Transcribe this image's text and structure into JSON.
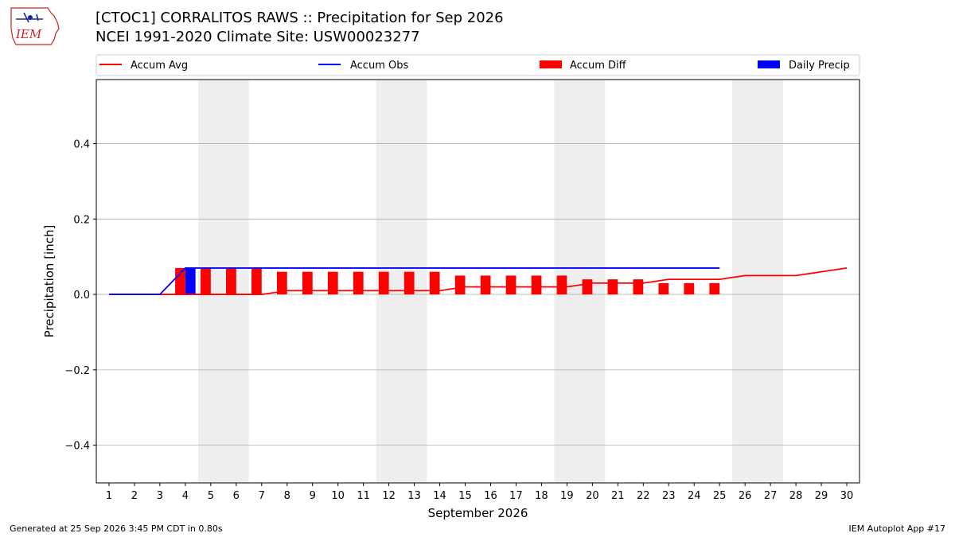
{
  "header": {
    "logo_text": "IEM",
    "title_line1": "[CTOC1] CORRALITOS RAWS :: Precipitation for Sep 2026",
    "title_line2": "NCEI 1991-2020 Climate Site: USW00023277"
  },
  "footer": {
    "left": "Generated at 25 Sep 2026 3:45 PM CDT in 0.80s",
    "right": "IEM Autoplot App #17"
  },
  "colors": {
    "avg": "#ff0000",
    "obs": "#0000ff",
    "diff": "#ff0000",
    "daily": "#0000ff",
    "weekend_band": "#eeeeee",
    "grid": "#b0b0b0"
  },
  "chart_data": {
    "type": "line",
    "title": "[CTOC1] CORRALITOS RAWS :: Precipitation for Sep 2026",
    "subtitle": "NCEI 1991-2020 Climate Site: USW00023277",
    "xlabel": "September 2026",
    "ylabel": "Precipitation [inch]",
    "ylim": [
      -0.5,
      0.57
    ],
    "xlim": [
      0.5,
      30.5
    ],
    "yticks": [
      -0.4,
      -0.2,
      0.0,
      0.2,
      0.4
    ],
    "ytick_labels": [
      "−0.4",
      "−0.2",
      "0.0",
      "0.2",
      "0.4"
    ],
    "xticks": [
      1,
      2,
      3,
      4,
      5,
      6,
      7,
      8,
      9,
      10,
      11,
      12,
      13,
      14,
      15,
      16,
      17,
      18,
      19,
      20,
      21,
      22,
      23,
      24,
      25,
      26,
      27,
      28,
      29,
      30
    ],
    "grid": "horizontal",
    "legend_placement": "top",
    "legend": [
      "Accum Avg",
      "Accum Obs",
      "Accum Diff",
      "Daily Precip"
    ],
    "shaded_days": [
      [
        5,
        6
      ],
      [
        12,
        13
      ],
      [
        19,
        20
      ],
      [
        26,
        27
      ]
    ],
    "series": [
      {
        "name": "Accum Avg",
        "kind": "line",
        "x": [
          1,
          2,
          3,
          4,
          5,
          6,
          7,
          8,
          9,
          10,
          11,
          12,
          13,
          14,
          15,
          16,
          17,
          18,
          19,
          20,
          21,
          22,
          23,
          24,
          25,
          26,
          27,
          28,
          29,
          30
        ],
        "values": [
          0.0,
          0.0,
          0.0,
          0.0,
          0.0,
          0.0,
          0.0,
          0.01,
          0.01,
          0.01,
          0.01,
          0.01,
          0.01,
          0.01,
          0.02,
          0.02,
          0.02,
          0.02,
          0.02,
          0.03,
          0.03,
          0.03,
          0.04,
          0.04,
          0.04,
          0.05,
          0.05,
          0.05,
          0.06,
          0.07
        ]
      },
      {
        "name": "Accum Obs",
        "kind": "line",
        "x": [
          1,
          2,
          3,
          4,
          5,
          6,
          7,
          8,
          9,
          10,
          11,
          12,
          13,
          14,
          15,
          16,
          17,
          18,
          19,
          20,
          21,
          22,
          23,
          24,
          25
        ],
        "values": [
          0.0,
          0.0,
          0.0,
          0.07,
          0.07,
          0.07,
          0.07,
          0.07,
          0.07,
          0.07,
          0.07,
          0.07,
          0.07,
          0.07,
          0.07,
          0.07,
          0.07,
          0.07,
          0.07,
          0.07,
          0.07,
          0.07,
          0.07,
          0.07,
          0.07
        ]
      },
      {
        "name": "Accum Diff",
        "kind": "bar",
        "x": [
          4,
          5,
          6,
          7,
          8,
          9,
          10,
          11,
          12,
          13,
          14,
          15,
          16,
          17,
          18,
          19,
          20,
          21,
          22,
          23,
          24,
          25
        ],
        "values": [
          0.07,
          0.07,
          0.07,
          0.07,
          0.06,
          0.06,
          0.06,
          0.06,
          0.06,
          0.06,
          0.06,
          0.05,
          0.05,
          0.05,
          0.05,
          0.05,
          0.04,
          0.04,
          0.04,
          0.03,
          0.03,
          0.03
        ]
      },
      {
        "name": "Daily Precip",
        "kind": "bar",
        "x": [
          4
        ],
        "values": [
          0.07
        ]
      }
    ]
  }
}
